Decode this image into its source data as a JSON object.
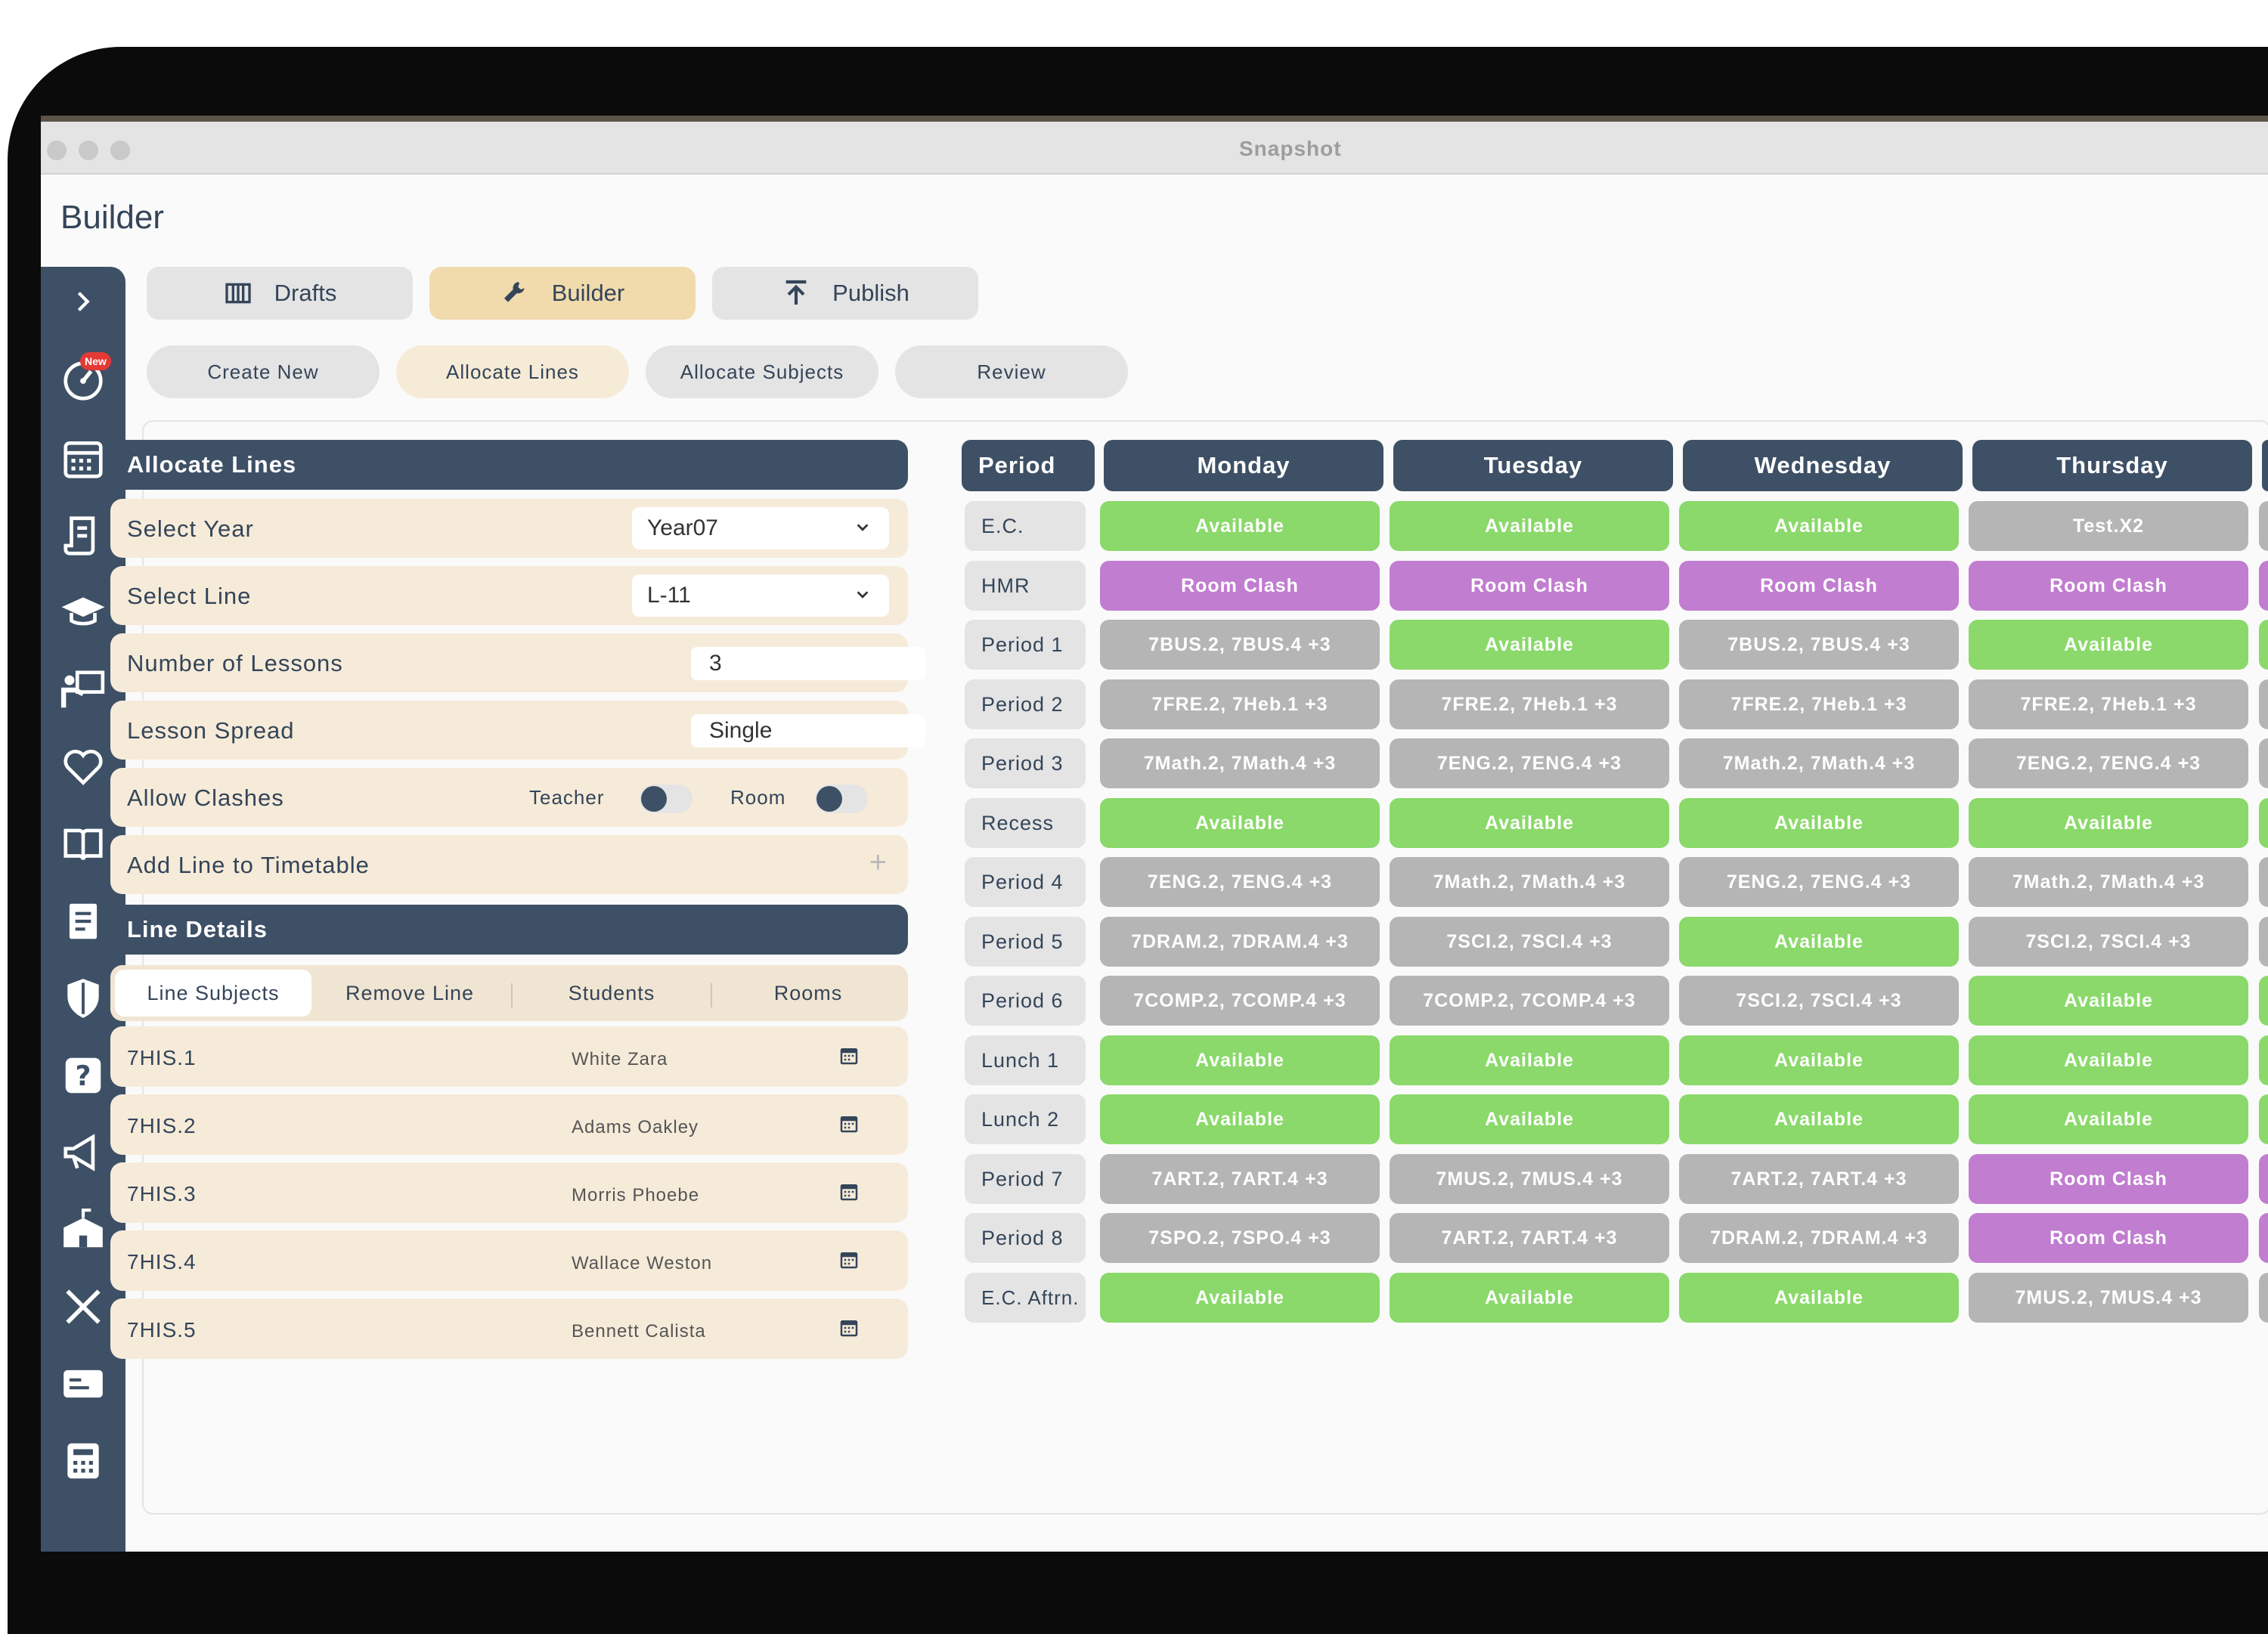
{
  "window": {
    "title": "Snapshot"
  },
  "page": {
    "title": "Builder"
  },
  "sidebar": {
    "icons": [
      "chevron-right-icon",
      "dashboard-icon",
      "calendar-icon",
      "scroll-icon",
      "graduation-cap-icon",
      "teacher-board-icon",
      "heart-icon",
      "book-icon",
      "document-icon",
      "shield-icon",
      "help-icon",
      "megaphone-icon",
      "school-icon",
      "tools-icon",
      "id-card-icon",
      "calculator-icon"
    ],
    "new_badge": "New"
  },
  "tabs": [
    {
      "label": "Drafts",
      "icon": "columns-icon",
      "active": false
    },
    {
      "label": "Builder",
      "icon": "wrench-icon",
      "active": true
    },
    {
      "label": "Publish",
      "icon": "upload-icon",
      "active": false
    }
  ],
  "subtabs": [
    {
      "label": "Create New",
      "active": false
    },
    {
      "label": "Allocate Lines",
      "active": true
    },
    {
      "label": "Allocate Subjects",
      "active": false
    },
    {
      "label": "Review",
      "active": false
    }
  ],
  "allocate": {
    "title": "Allocate Lines",
    "select_year": {
      "label": "Select Year",
      "value": "Year07"
    },
    "select_line": {
      "label": "Select Line",
      "value": "L-11"
    },
    "lessons": {
      "label": "Number of Lessons",
      "value": "3"
    },
    "spread": {
      "label": "Lesson Spread",
      "value": "Single"
    },
    "clashes": {
      "label": "Allow Clashes",
      "teacher": "Teacher",
      "room": "Room"
    },
    "add": {
      "label": "Add Line to Timetable",
      "icon": "+"
    }
  },
  "line_details": {
    "title": "Line Details",
    "tabs": [
      "Line Subjects",
      "Remove Line",
      "Students",
      "Rooms"
    ],
    "subjects": [
      {
        "code": "7HIS.1",
        "teacher": "White Zara"
      },
      {
        "code": "7HIS.2",
        "teacher": "Adams Oakley"
      },
      {
        "code": "7HIS.3",
        "teacher": "Morris Phoebe"
      },
      {
        "code": "7HIS.4",
        "teacher": "Wallace Weston"
      },
      {
        "code": "7HIS.5",
        "teacher": "Bennett Calista"
      }
    ]
  },
  "timetable": {
    "period_header": "Period",
    "days": [
      "Monday",
      "Tuesday",
      "Wednesday",
      "Thursday"
    ],
    "rows": [
      {
        "period": "E.C.",
        "cells": [
          {
            "text": "Available",
            "type": "available"
          },
          {
            "text": "Available",
            "type": "available"
          },
          {
            "text": "Available",
            "type": "available"
          },
          {
            "text": "Test.X2",
            "type": "lesson"
          }
        ]
      },
      {
        "period": "HMR",
        "cells": [
          {
            "text": "Room Clash",
            "type": "clash"
          },
          {
            "text": "Room Clash",
            "type": "clash"
          },
          {
            "text": "Room Clash",
            "type": "clash"
          },
          {
            "text": "Room Clash",
            "type": "clash"
          }
        ]
      },
      {
        "period": "Period 1",
        "cells": [
          {
            "text": "7BUS.2, 7BUS.4 +3",
            "type": "lesson"
          },
          {
            "text": "Available",
            "type": "available"
          },
          {
            "text": "7BUS.2, 7BUS.4 +3",
            "type": "lesson"
          },
          {
            "text": "Available",
            "type": "available"
          }
        ]
      },
      {
        "period": "Period 2",
        "cells": [
          {
            "text": "7FRE.2, 7Heb.1 +3",
            "type": "lesson"
          },
          {
            "text": "7FRE.2, 7Heb.1 +3",
            "type": "lesson"
          },
          {
            "text": "7FRE.2, 7Heb.1 +3",
            "type": "lesson"
          },
          {
            "text": "7FRE.2, 7Heb.1 +3",
            "type": "lesson"
          }
        ]
      },
      {
        "period": "Period 3",
        "cells": [
          {
            "text": "7Math.2, 7Math.4 +3",
            "type": "lesson"
          },
          {
            "text": "7ENG.2, 7ENG.4 +3",
            "type": "lesson"
          },
          {
            "text": "7Math.2, 7Math.4 +3",
            "type": "lesson"
          },
          {
            "text": "7ENG.2, 7ENG.4 +3",
            "type": "lesson"
          }
        ]
      },
      {
        "period": "Recess",
        "cells": [
          {
            "text": "Available",
            "type": "available"
          },
          {
            "text": "Available",
            "type": "available"
          },
          {
            "text": "Available",
            "type": "available"
          },
          {
            "text": "Available",
            "type": "available"
          }
        ]
      },
      {
        "period": "Period 4",
        "cells": [
          {
            "text": "7ENG.2, 7ENG.4 +3",
            "type": "lesson"
          },
          {
            "text": "7Math.2, 7Math.4 +3",
            "type": "lesson"
          },
          {
            "text": "7ENG.2, 7ENG.4 +3",
            "type": "lesson"
          },
          {
            "text": "7Math.2, 7Math.4 +3",
            "type": "lesson"
          }
        ]
      },
      {
        "period": "Period 5",
        "cells": [
          {
            "text": "7DRAM.2, 7DRAM.4 +3",
            "type": "lesson"
          },
          {
            "text": "7SCI.2, 7SCI.4 +3",
            "type": "lesson"
          },
          {
            "text": "Available",
            "type": "available"
          },
          {
            "text": "7SCI.2, 7SCI.4 +3",
            "type": "lesson"
          }
        ]
      },
      {
        "period": "Period 6",
        "cells": [
          {
            "text": "7COMP.2, 7COMP.4 +3",
            "type": "lesson"
          },
          {
            "text": "7COMP.2, 7COMP.4 +3",
            "type": "lesson"
          },
          {
            "text": "7SCI.2, 7SCI.4 +3",
            "type": "lesson"
          },
          {
            "text": "Available",
            "type": "available"
          }
        ]
      },
      {
        "period": "Lunch 1",
        "cells": [
          {
            "text": "Available",
            "type": "available"
          },
          {
            "text": "Available",
            "type": "available"
          },
          {
            "text": "Available",
            "type": "available"
          },
          {
            "text": "Available",
            "type": "available"
          }
        ]
      },
      {
        "period": "Lunch 2",
        "cells": [
          {
            "text": "Available",
            "type": "available"
          },
          {
            "text": "Available",
            "type": "available"
          },
          {
            "text": "Available",
            "type": "available"
          },
          {
            "text": "Available",
            "type": "available"
          }
        ]
      },
      {
        "period": "Period 7",
        "cells": [
          {
            "text": "7ART.2, 7ART.4 +3",
            "type": "lesson"
          },
          {
            "text": "7MUS.2, 7MUS.4 +3",
            "type": "lesson"
          },
          {
            "text": "7ART.2, 7ART.4 +3",
            "type": "lesson"
          },
          {
            "text": "Room Clash",
            "type": "clash"
          }
        ]
      },
      {
        "period": "Period 8",
        "cells": [
          {
            "text": "7SPO.2, 7SPO.4 +3",
            "type": "lesson"
          },
          {
            "text": "7ART.2, 7ART.4 +3",
            "type": "lesson"
          },
          {
            "text": "7DRAM.2, 7DRAM.4 +3",
            "type": "lesson"
          },
          {
            "text": "Room Clash",
            "type": "clash"
          }
        ]
      },
      {
        "period": "E.C. Aftrn.",
        "cells": [
          {
            "text": "Available",
            "type": "available"
          },
          {
            "text": "Available",
            "type": "available"
          },
          {
            "text": "Available",
            "type": "available"
          },
          {
            "text": "7MUS.2, 7MUS.4 +3",
            "type": "lesson"
          }
        ]
      }
    ]
  },
  "colors": {
    "navy": "#3e5066",
    "available": "#8ad96a",
    "clash": "#c17dd0",
    "lesson": "#b5b5b5",
    "active_tab": "#f1dbac",
    "row_bg": "#f6ebd9"
  }
}
